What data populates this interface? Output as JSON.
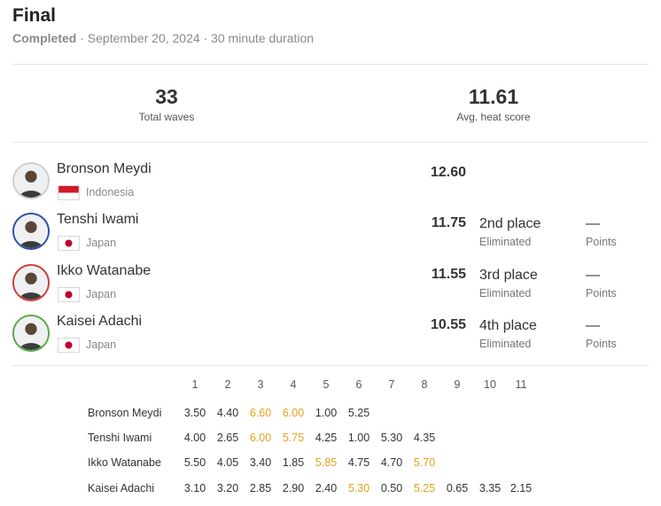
{
  "heat": {
    "title": "Final",
    "status": "Completed",
    "meta": " · September 20, 2024 · 30 minute duration"
  },
  "stats": [
    {
      "value": "33",
      "label": "Total waves"
    },
    {
      "value": "11.61",
      "label": "Avg. heat score"
    }
  ],
  "surfers": [
    {
      "name": "Bronson Meydi",
      "country": "Indonesia",
      "flag": "indonesia",
      "ring": "#cfcfcf",
      "score": "12.60",
      "place": "",
      "place_sub": "",
      "points": "",
      "points_sub": ""
    },
    {
      "name": "Tenshi Iwami",
      "country": "Japan",
      "flag": "japan",
      "ring": "#2f4ea8",
      "score": "11.75",
      "place": "2nd place",
      "place_sub": "Eliminated",
      "points": "—",
      "points_sub": "Points"
    },
    {
      "name": "Ikko Watanabe",
      "country": "Japan",
      "flag": "japan",
      "ring": "#d23a3a",
      "score": "11.55",
      "place": "3rd place",
      "place_sub": "Eliminated",
      "points": "—",
      "points_sub": "Points"
    },
    {
      "name": "Kaisei Adachi",
      "country": "Japan",
      "flag": "japan",
      "ring": "#5aa84a",
      "score": "10.55",
      "place": "4th place",
      "place_sub": "Eliminated",
      "points": "—",
      "points_sub": "Points"
    }
  ],
  "colors": {
    "highlight": "#e3a21a"
  },
  "waves": {
    "headers": [
      "1",
      "2",
      "3",
      "4",
      "5",
      "6",
      "7",
      "8",
      "9",
      "10",
      "11"
    ],
    "rows": [
      {
        "name": "Bronson Meydi",
        "scores": [
          "3.50",
          "4.40",
          "6.60",
          "6.00",
          "1.00",
          "5.25"
        ],
        "highlight": [
          2,
          3
        ]
      },
      {
        "name": "Tenshi Iwami",
        "scores": [
          "4.00",
          "2.65",
          "6.00",
          "5.75",
          "4.25",
          "1.00",
          "5.30",
          "4.35"
        ],
        "highlight": [
          2,
          3
        ]
      },
      {
        "name": "Ikko Watanabe",
        "scores": [
          "5.50",
          "4.05",
          "3.40",
          "1.85",
          "5.85",
          "4.75",
          "4.70",
          "5.70"
        ],
        "highlight": [
          4,
          7
        ]
      },
      {
        "name": "Kaisei Adachi",
        "scores": [
          "3.10",
          "3.20",
          "2.85",
          "2.90",
          "2.40",
          "5.30",
          "0.50",
          "5.25",
          "0.65",
          "3.35",
          "2.15"
        ],
        "highlight": [
          5,
          7
        ]
      }
    ]
  }
}
